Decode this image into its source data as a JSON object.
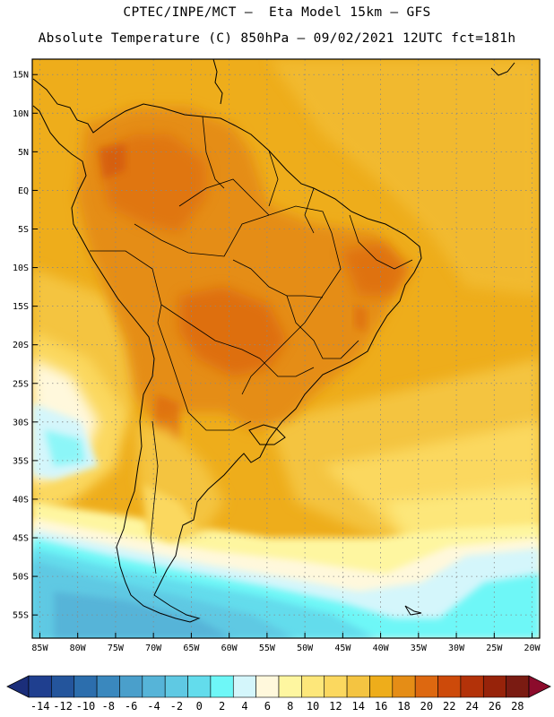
{
  "header": {
    "line1": "CPTEC/INPE/MCT –  Eta Model 15km – GFS",
    "line2": "Absolute Temperature (C) 850hPa – 09/02/2021 12UTC fct=181h"
  },
  "map": {
    "lon_range": [
      -86,
      -19
    ],
    "lat_range": [
      -58,
      17
    ],
    "lat_ticks": [
      {
        "value": 15,
        "label": "15N"
      },
      {
        "value": 10,
        "label": "10N"
      },
      {
        "value": 5,
        "label": "5N"
      },
      {
        "value": 0,
        "label": "EQ"
      },
      {
        "value": -5,
        "label": "5S"
      },
      {
        "value": -10,
        "label": "10S"
      },
      {
        "value": -15,
        "label": "15S"
      },
      {
        "value": -20,
        "label": "20S"
      },
      {
        "value": -25,
        "label": "25S"
      },
      {
        "value": -30,
        "label": "30S"
      },
      {
        "value": -35,
        "label": "35S"
      },
      {
        "value": -40,
        "label": "40S"
      },
      {
        "value": -45,
        "label": "45S"
      },
      {
        "value": -50,
        "label": "50S"
      },
      {
        "value": -55,
        "label": "55S"
      }
    ],
    "lon_ticks": [
      {
        "value": -85,
        "label": "85W"
      },
      {
        "value": -80,
        "label": "80W"
      },
      {
        "value": -75,
        "label": "75W"
      },
      {
        "value": -70,
        "label": "70W"
      },
      {
        "value": -65,
        "label": "65W"
      },
      {
        "value": -60,
        "label": "60W"
      },
      {
        "value": -55,
        "label": "55W"
      },
      {
        "value": -50,
        "label": "50W"
      },
      {
        "value": -45,
        "label": "45W"
      },
      {
        "value": -40,
        "label": "40W"
      },
      {
        "value": -35,
        "label": "35W"
      },
      {
        "value": -30,
        "label": "30W"
      },
      {
        "value": -25,
        "label": "25W"
      },
      {
        "value": -20,
        "label": "20W"
      }
    ]
  },
  "colorbar": {
    "labels": [
      "-14",
      "-12",
      "-10",
      "-8",
      "-6",
      "-4",
      "-2",
      "0",
      "2",
      "4",
      "6",
      "8",
      "10",
      "12",
      "14",
      "16",
      "18",
      "20",
      "22",
      "24",
      "26",
      "28"
    ],
    "colors": [
      "#1f3f8f",
      "#24559c",
      "#2c6ead",
      "#3a88be",
      "#4a9fcb",
      "#56b4d8",
      "#5fc9e3",
      "#63dcec",
      "#6ef7f7",
      "#d4f6fb",
      "#fff8dc",
      "#fef6a0",
      "#fde77a",
      "#fbd85f",
      "#f4c441",
      "#eead1b",
      "#e58d16",
      "#dd6810",
      "#cd4a0a",
      "#b33209",
      "#97230a",
      "#7a1b12"
    ],
    "under_color": "#1b2e7a",
    "over_color": "#8c0b2c"
  }
}
